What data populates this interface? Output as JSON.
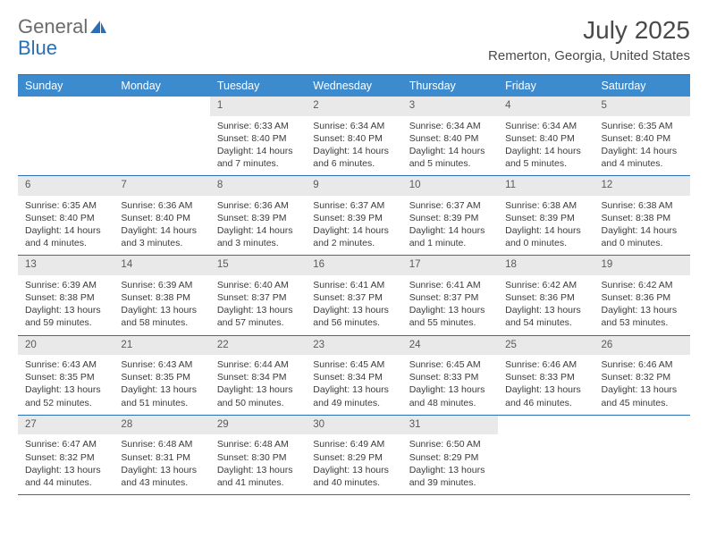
{
  "brand": {
    "part1": "General",
    "part2": "Blue"
  },
  "title": "July 2025",
  "location": "Remerton, Georgia, United States",
  "colors": {
    "header_bg": "#3c8bcf",
    "rule": "#2a6fb5",
    "daynum_bg": "#e9e9e9",
    "text": "#3b3b3b"
  },
  "dow": [
    "Sunday",
    "Monday",
    "Tuesday",
    "Wednesday",
    "Thursday",
    "Friday",
    "Saturday"
  ],
  "weeks": [
    [
      null,
      null,
      {
        "d": "1",
        "sr": "Sunrise: 6:33 AM",
        "ss": "Sunset: 8:40 PM",
        "dl1": "Daylight: 14 hours",
        "dl2": "and 7 minutes."
      },
      {
        "d": "2",
        "sr": "Sunrise: 6:34 AM",
        "ss": "Sunset: 8:40 PM",
        "dl1": "Daylight: 14 hours",
        "dl2": "and 6 minutes."
      },
      {
        "d": "3",
        "sr": "Sunrise: 6:34 AM",
        "ss": "Sunset: 8:40 PM",
        "dl1": "Daylight: 14 hours",
        "dl2": "and 5 minutes."
      },
      {
        "d": "4",
        "sr": "Sunrise: 6:34 AM",
        "ss": "Sunset: 8:40 PM",
        "dl1": "Daylight: 14 hours",
        "dl2": "and 5 minutes."
      },
      {
        "d": "5",
        "sr": "Sunrise: 6:35 AM",
        "ss": "Sunset: 8:40 PM",
        "dl1": "Daylight: 14 hours",
        "dl2": "and 4 minutes."
      }
    ],
    [
      {
        "d": "6",
        "sr": "Sunrise: 6:35 AM",
        "ss": "Sunset: 8:40 PM",
        "dl1": "Daylight: 14 hours",
        "dl2": "and 4 minutes."
      },
      {
        "d": "7",
        "sr": "Sunrise: 6:36 AM",
        "ss": "Sunset: 8:40 PM",
        "dl1": "Daylight: 14 hours",
        "dl2": "and 3 minutes."
      },
      {
        "d": "8",
        "sr": "Sunrise: 6:36 AM",
        "ss": "Sunset: 8:39 PM",
        "dl1": "Daylight: 14 hours",
        "dl2": "and 3 minutes."
      },
      {
        "d": "9",
        "sr": "Sunrise: 6:37 AM",
        "ss": "Sunset: 8:39 PM",
        "dl1": "Daylight: 14 hours",
        "dl2": "and 2 minutes."
      },
      {
        "d": "10",
        "sr": "Sunrise: 6:37 AM",
        "ss": "Sunset: 8:39 PM",
        "dl1": "Daylight: 14 hours",
        "dl2": "and 1 minute."
      },
      {
        "d": "11",
        "sr": "Sunrise: 6:38 AM",
        "ss": "Sunset: 8:39 PM",
        "dl1": "Daylight: 14 hours",
        "dl2": "and 0 minutes."
      },
      {
        "d": "12",
        "sr": "Sunrise: 6:38 AM",
        "ss": "Sunset: 8:38 PM",
        "dl1": "Daylight: 14 hours",
        "dl2": "and 0 minutes."
      }
    ],
    [
      {
        "d": "13",
        "sr": "Sunrise: 6:39 AM",
        "ss": "Sunset: 8:38 PM",
        "dl1": "Daylight: 13 hours",
        "dl2": "and 59 minutes."
      },
      {
        "d": "14",
        "sr": "Sunrise: 6:39 AM",
        "ss": "Sunset: 8:38 PM",
        "dl1": "Daylight: 13 hours",
        "dl2": "and 58 minutes."
      },
      {
        "d": "15",
        "sr": "Sunrise: 6:40 AM",
        "ss": "Sunset: 8:37 PM",
        "dl1": "Daylight: 13 hours",
        "dl2": "and 57 minutes."
      },
      {
        "d": "16",
        "sr": "Sunrise: 6:41 AM",
        "ss": "Sunset: 8:37 PM",
        "dl1": "Daylight: 13 hours",
        "dl2": "and 56 minutes."
      },
      {
        "d": "17",
        "sr": "Sunrise: 6:41 AM",
        "ss": "Sunset: 8:37 PM",
        "dl1": "Daylight: 13 hours",
        "dl2": "and 55 minutes."
      },
      {
        "d": "18",
        "sr": "Sunrise: 6:42 AM",
        "ss": "Sunset: 8:36 PM",
        "dl1": "Daylight: 13 hours",
        "dl2": "and 54 minutes."
      },
      {
        "d": "19",
        "sr": "Sunrise: 6:42 AM",
        "ss": "Sunset: 8:36 PM",
        "dl1": "Daylight: 13 hours",
        "dl2": "and 53 minutes."
      }
    ],
    [
      {
        "d": "20",
        "sr": "Sunrise: 6:43 AM",
        "ss": "Sunset: 8:35 PM",
        "dl1": "Daylight: 13 hours",
        "dl2": "and 52 minutes."
      },
      {
        "d": "21",
        "sr": "Sunrise: 6:43 AM",
        "ss": "Sunset: 8:35 PM",
        "dl1": "Daylight: 13 hours",
        "dl2": "and 51 minutes."
      },
      {
        "d": "22",
        "sr": "Sunrise: 6:44 AM",
        "ss": "Sunset: 8:34 PM",
        "dl1": "Daylight: 13 hours",
        "dl2": "and 50 minutes."
      },
      {
        "d": "23",
        "sr": "Sunrise: 6:45 AM",
        "ss": "Sunset: 8:34 PM",
        "dl1": "Daylight: 13 hours",
        "dl2": "and 49 minutes."
      },
      {
        "d": "24",
        "sr": "Sunrise: 6:45 AM",
        "ss": "Sunset: 8:33 PM",
        "dl1": "Daylight: 13 hours",
        "dl2": "and 48 minutes."
      },
      {
        "d": "25",
        "sr": "Sunrise: 6:46 AM",
        "ss": "Sunset: 8:33 PM",
        "dl1": "Daylight: 13 hours",
        "dl2": "and 46 minutes."
      },
      {
        "d": "26",
        "sr": "Sunrise: 6:46 AM",
        "ss": "Sunset: 8:32 PM",
        "dl1": "Daylight: 13 hours",
        "dl2": "and 45 minutes."
      }
    ],
    [
      {
        "d": "27",
        "sr": "Sunrise: 6:47 AM",
        "ss": "Sunset: 8:32 PM",
        "dl1": "Daylight: 13 hours",
        "dl2": "and 44 minutes."
      },
      {
        "d": "28",
        "sr": "Sunrise: 6:48 AM",
        "ss": "Sunset: 8:31 PM",
        "dl1": "Daylight: 13 hours",
        "dl2": "and 43 minutes."
      },
      {
        "d": "29",
        "sr": "Sunrise: 6:48 AM",
        "ss": "Sunset: 8:30 PM",
        "dl1": "Daylight: 13 hours",
        "dl2": "and 41 minutes."
      },
      {
        "d": "30",
        "sr": "Sunrise: 6:49 AM",
        "ss": "Sunset: 8:29 PM",
        "dl1": "Daylight: 13 hours",
        "dl2": "and 40 minutes."
      },
      {
        "d": "31",
        "sr": "Sunrise: 6:50 AM",
        "ss": "Sunset: 8:29 PM",
        "dl1": "Daylight: 13 hours",
        "dl2": "and 39 minutes."
      },
      null,
      null
    ]
  ]
}
